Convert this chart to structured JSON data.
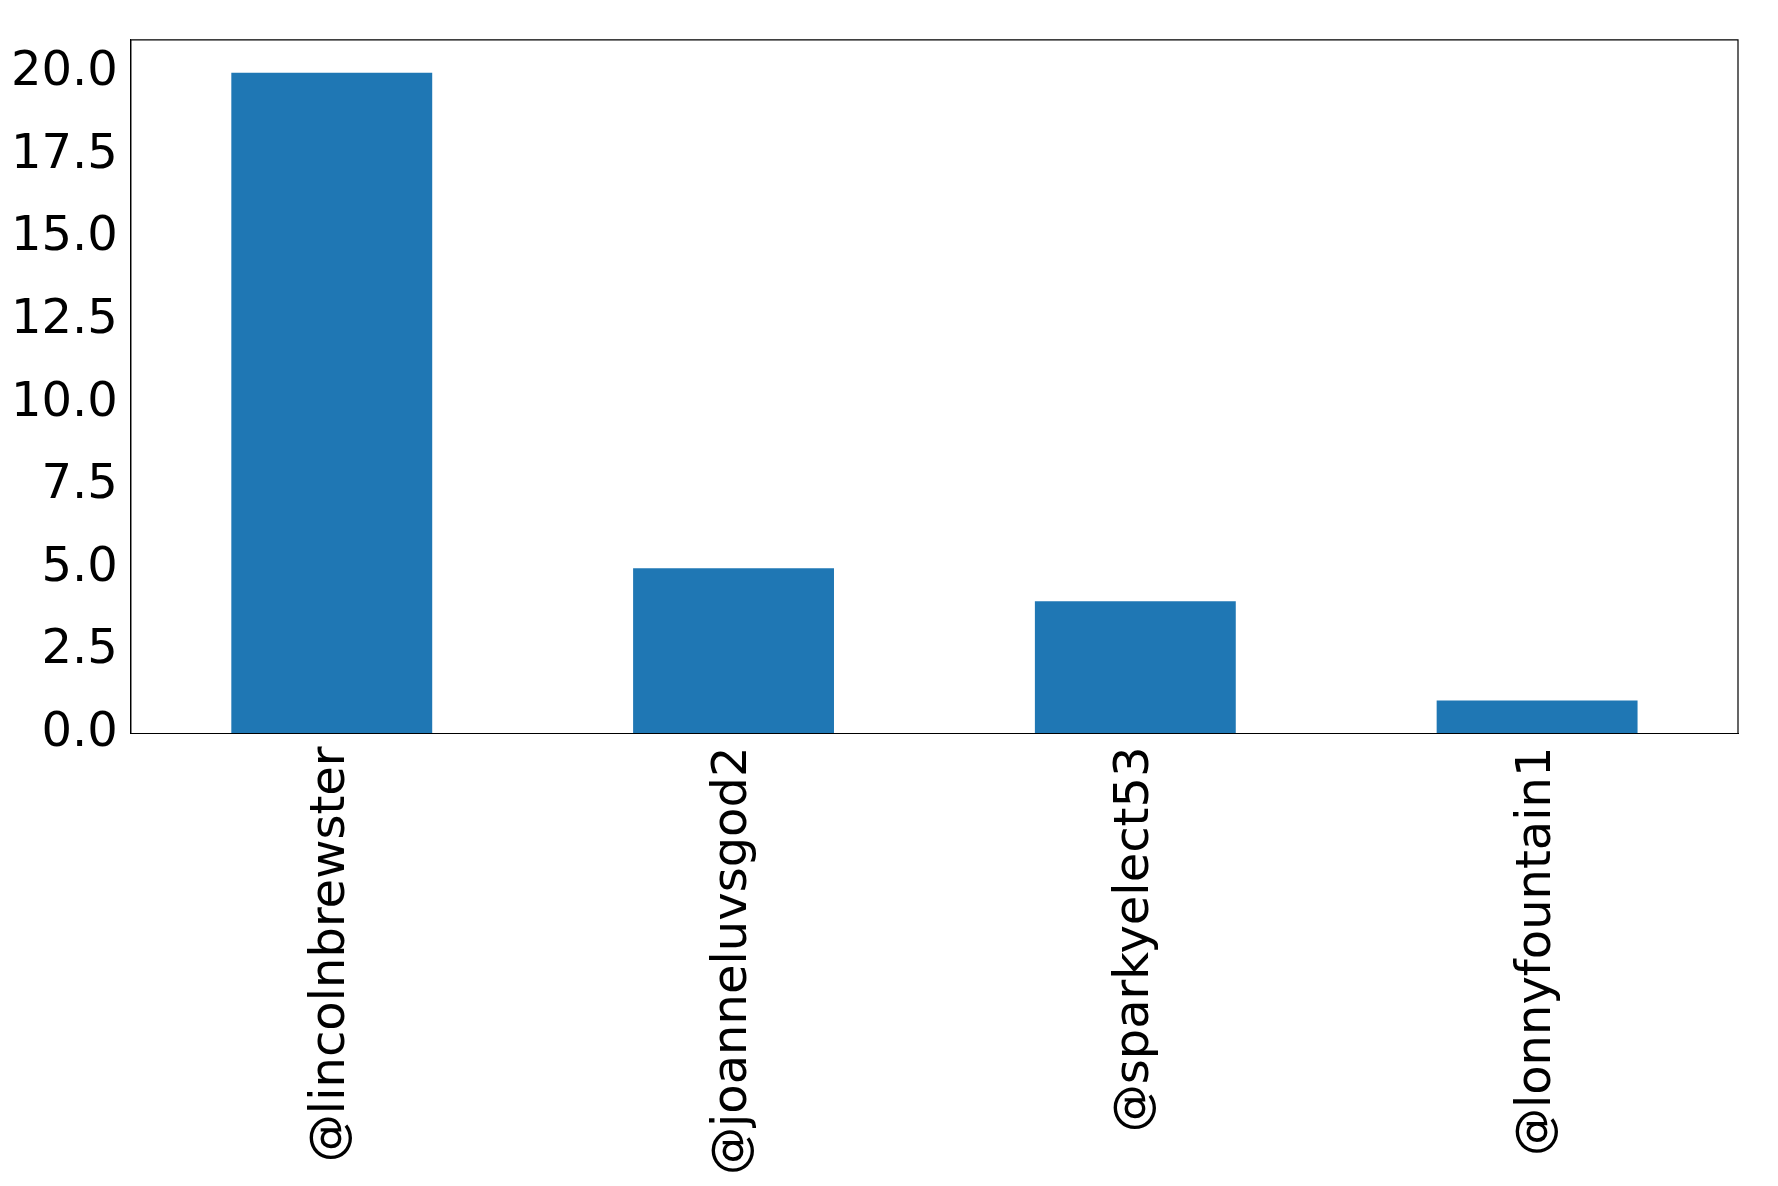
{
  "chart_data": {
    "type": "bar",
    "categories": [
      "@lincolnbrewster",
      "@joanneluvsgod2",
      "@sparkyelect53",
      "@lonnyfountain1"
    ],
    "values": [
      20,
      5,
      4,
      1
    ],
    "color": "#1f77b4",
    "ylim": [
      0,
      21
    ],
    "yticks": [
      {
        "value": 0,
        "label": "0.0"
      },
      {
        "value": 2.5,
        "label": "2.5"
      },
      {
        "value": 5,
        "label": "5.0"
      },
      {
        "value": 7.5,
        "label": "7.5"
      },
      {
        "value": 10,
        "label": "10.0"
      },
      {
        "value": 12.5,
        "label": "12.5"
      },
      {
        "value": 15,
        "label": "15.0"
      },
      {
        "value": 17.5,
        "label": "17.5"
      },
      {
        "value": 20,
        "label": "20.0"
      }
    ],
    "grid": false,
    "legend": false
  }
}
